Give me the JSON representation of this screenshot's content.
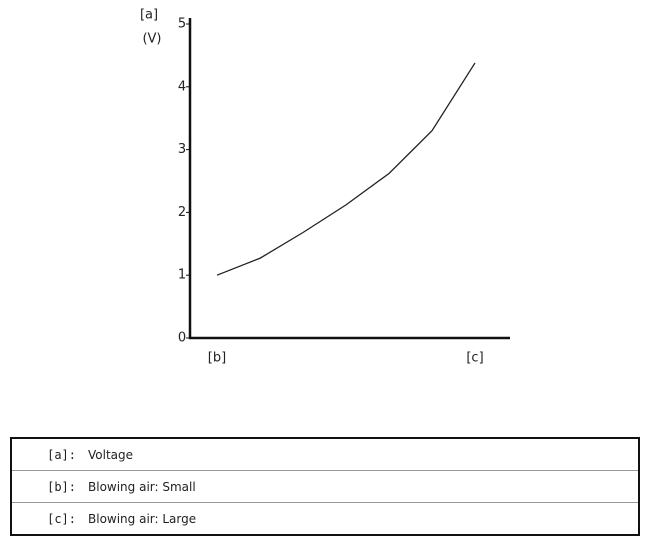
{
  "chart_data": {
    "type": "line",
    "y_label": "[a]",
    "y_unit": "(V)",
    "categories": [
      "[b]",
      null,
      null,
      null,
      null,
      null,
      "[c]"
    ],
    "values": [
      1.0,
      1.27,
      1.68,
      2.12,
      2.62,
      3.3,
      4.38
    ],
    "color": "#222222",
    "ylim": [
      0,
      5
    ],
    "yticks": [
      0,
      1,
      2,
      3,
      4,
      5
    ],
    "grid": false
  },
  "table": {
    "rows": [
      [
        "[a]:",
        "Voltage"
      ],
      [
        "[b]:",
        "Blowing air: Small"
      ],
      [
        "[c]:",
        "Blowing air: Large"
      ]
    ]
  }
}
